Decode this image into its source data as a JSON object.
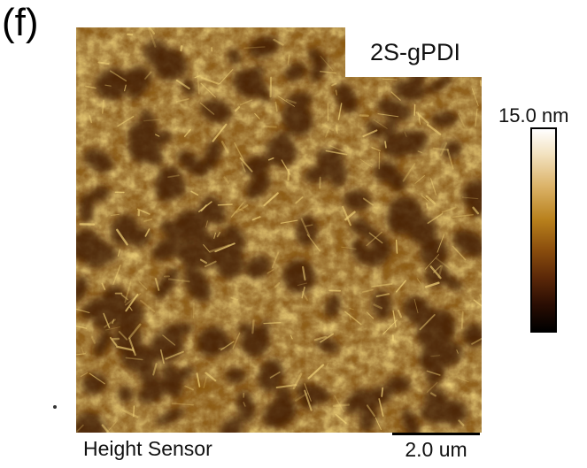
{
  "figure": {
    "panel_label": "(f)",
    "sample_label": "2S-gPDI",
    "channel_label": "Height Sensor",
    "scale_bar_label": "2.0 um"
  },
  "colorbar": {
    "max_label": "15.0 nm",
    "colors": [
      "#ffffff",
      "#dcb46a",
      "#b8801c",
      "#5a2708",
      "#000000"
    ]
  },
  "image_colors": {
    "dark": "#3a1803",
    "mid": "#8b5a12",
    "light": "#f4d77e"
  }
}
